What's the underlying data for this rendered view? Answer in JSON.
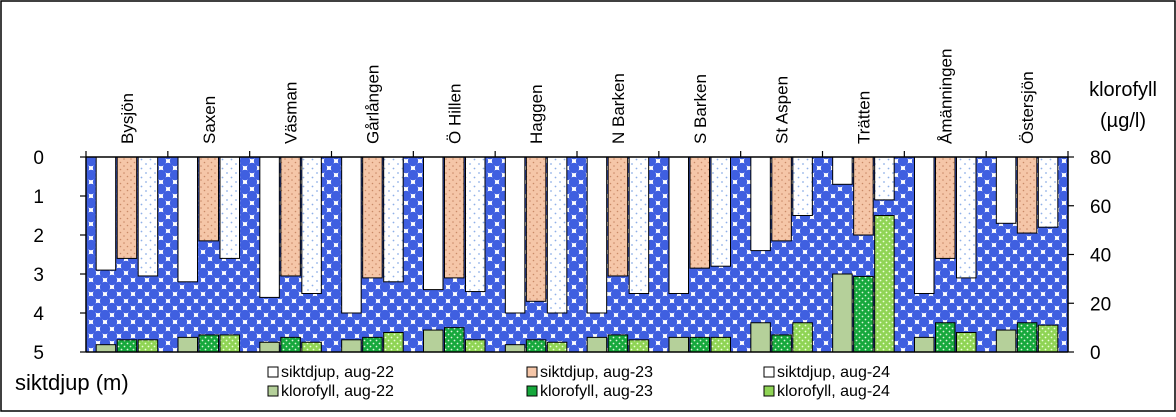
{
  "chart_data": {
    "type": "bar",
    "categories": [
      "Bysjön",
      "Saxen",
      "Väsman",
      "Gårlången",
      "Ö Hillen",
      "Haggen",
      "N Barken",
      "S Barken",
      "St Aspen",
      "Trätten",
      "Åmänningen",
      "Östersjön"
    ],
    "left_axis": {
      "label": "siktdjup (m)",
      "ylim": [
        0,
        5
      ],
      "ticks": [
        0,
        1,
        2,
        3,
        4,
        5
      ],
      "inverted": true
    },
    "right_axis": {
      "label_lines": [
        "klorofyll",
        "(µg/l)"
      ],
      "ylim": [
        0,
        80
      ],
      "ticks": [
        0,
        20,
        40,
        60,
        80
      ]
    },
    "colors": {
      "background_a": "#3f5fe0",
      "background_b": "#ffffff",
      "sikt_22": "#ffffff",
      "sikt_23": "#f5c6a8",
      "sikt_24": "#ffffff",
      "klor_22": "#b5d09a",
      "klor_23": "#16a83c",
      "klor_24": "#8fd455"
    },
    "series": [
      {
        "name": "siktdjup, aug-22",
        "axis": "left",
        "values": [
          2.9,
          3.2,
          3.6,
          4.0,
          3.4,
          4.0,
          4.0,
          3.5,
          2.4,
          0.7,
          3.5,
          1.7
        ]
      },
      {
        "name": "siktdjup, aug-23",
        "axis": "left",
        "values": [
          2.6,
          2.15,
          3.05,
          3.1,
          3.1,
          3.7,
          3.05,
          2.85,
          2.15,
          2.0,
          2.6,
          1.95
        ]
      },
      {
        "name": "siktdjup, aug-24",
        "axis": "left",
        "values": [
          3.05,
          2.6,
          3.5,
          3.2,
          3.45,
          4.0,
          3.5,
          2.8,
          1.5,
          1.1,
          3.1,
          1.8
        ]
      },
      {
        "name": "klorofyll, aug-22",
        "axis": "right",
        "values": [
          3,
          6,
          4,
          5,
          9,
          3,
          6,
          6,
          12,
          32,
          6,
          9
        ]
      },
      {
        "name": "klorofyll, aug-23",
        "axis": "right",
        "values": [
          5,
          7,
          6,
          6,
          10,
          5,
          7,
          6,
          7,
          31,
          12,
          12
        ]
      },
      {
        "name": "klorofyll, aug-24",
        "axis": "right",
        "values": [
          5,
          7,
          4,
          8,
          5,
          4,
          5,
          6,
          12,
          56,
          8,
          11
        ]
      }
    ],
    "legend": [
      "siktdjup, aug-22",
      "siktdjup, aug-23",
      "siktdjup, aug-24",
      "klorofyll, aug-22",
      "klorofyll, aug-23",
      "klorofyll, aug-24"
    ],
    "legend_placement": "bottom"
  }
}
